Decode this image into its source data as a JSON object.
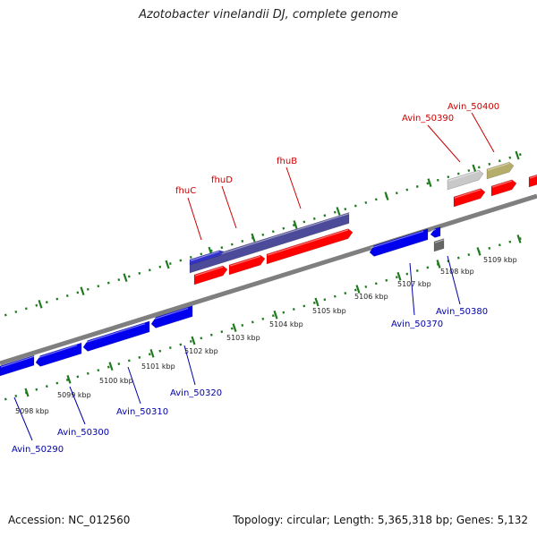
{
  "title": "Azotobacter vinelandii DJ, complete genome",
  "footer": {
    "accession": "Accession: NC_012560",
    "summary": "Topology: circular; Length: 5,365,318 bp; Genes: 5,132"
  },
  "colors": {
    "backbone": "#7f7f7f",
    "tick": "#1f7a1f",
    "gene_forward": "#ff0000",
    "gene_reverse": "#0000ee",
    "operon": "#4b4b9a",
    "label_red": "#cc0000",
    "label_blue": "#0000aa",
    "pseudogene_gray": "#c8c8c8",
    "pseudogene_olive": "#b5ad6b",
    "dark_gray": "#666666"
  },
  "scale": {
    "unit": "kbp",
    "ticks": [
      {
        "value": 5098,
        "label": "5098 kbp"
      },
      {
        "value": 5099,
        "label": "5099 kbp"
      },
      {
        "value": 5100,
        "label": "5100 kbp"
      },
      {
        "value": 5101,
        "label": "5101 kbp"
      },
      {
        "value": 5102,
        "label": "5102 kbp"
      },
      {
        "value": 5103,
        "label": "5103 kbp"
      },
      {
        "value": 5104,
        "label": "5104 kbp"
      },
      {
        "value": 5105,
        "label": "5105 kbp"
      },
      {
        "value": 5106,
        "label": "5106 kbp"
      },
      {
        "value": 5107,
        "label": "5107 kbp"
      },
      {
        "value": 5108,
        "label": "5108 kbp"
      },
      {
        "value": 5109,
        "label": "5109 kbp"
      }
    ]
  },
  "gene_labels": [
    {
      "id": "fhuC",
      "text": "fhuC",
      "strand": "forward"
    },
    {
      "id": "fhuD",
      "text": "fhuD",
      "strand": "forward"
    },
    {
      "id": "fhuB",
      "text": "fhuB",
      "strand": "forward"
    },
    {
      "id": "avin50390",
      "text": "Avin_50390",
      "strand": "forward"
    },
    {
      "id": "avin50400",
      "text": "Avin_50400",
      "strand": "forward"
    },
    {
      "id": "avin50290",
      "text": "Avin_50290",
      "strand": "reverse"
    },
    {
      "id": "avin50300",
      "text": "Avin_50300",
      "strand": "reverse"
    },
    {
      "id": "avin50310",
      "text": "Avin_50310",
      "strand": "reverse"
    },
    {
      "id": "avin50320",
      "text": "Avin_50320",
      "strand": "reverse"
    },
    {
      "id": "avin50370",
      "text": "Avin_50370",
      "strand": "reverse"
    },
    {
      "id": "avin50380",
      "text": "Avin_50380",
      "strand": "reverse"
    }
  ]
}
